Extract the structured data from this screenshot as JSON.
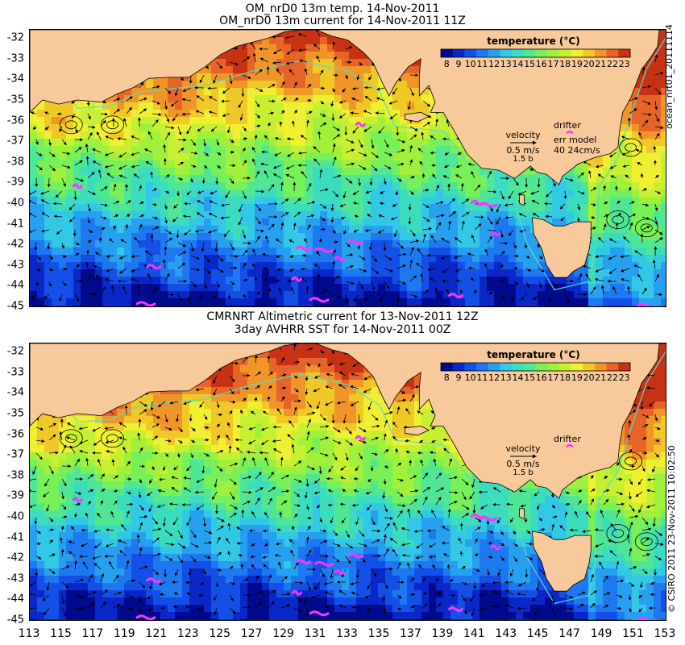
{
  "top_panel": {
    "title_line1": "OM_nrD0 13m temp. 14-Nov-2011",
    "title_line2": "OM_nrD0 13m current for 14-Nov-2011 11Z",
    "side_label": "ocean_nrt01_20111114",
    "velocity_label": "velocity",
    "velocity_value": "0.5 m/s",
    "velocity_sub": "1.5 b",
    "drifter_label": "drifter",
    "err_model_label": "err model",
    "err_model_value": "40 24cm/s"
  },
  "bottom_panel": {
    "title_line1": "CMRNRT Altimetric current for 13-Nov-2011 12Z",
    "title_line2": "3day AVHRR SST for 14-Nov-2011 00Z",
    "side_label": "© CSIRO 2011   23-Nov-2011 10:02:50",
    "velocity_label": "velocity",
    "velocity_value": "0.5 m/s",
    "velocity_sub": "1.5 b",
    "drifter_label": "drifter"
  },
  "legend": {
    "title": "temperature (°C)",
    "ticks": [
      "8",
      "9",
      "10",
      "11",
      "12",
      "13",
      "14",
      "15",
      "16",
      "17",
      "18",
      "19",
      "20",
      "21",
      "22",
      "23"
    ],
    "colors": [
      "#000a8c",
      "#0a28c8",
      "#1450e6",
      "#1e78f0",
      "#28a0f0",
      "#32c8e6",
      "#3cdcbe",
      "#50e696",
      "#78f05a",
      "#a0f03c",
      "#c8f032",
      "#f0f032",
      "#f0c828",
      "#f09628",
      "#e66428",
      "#c83214"
    ]
  },
  "map_axes": {
    "lat_ticks": [
      "-32",
      "-33",
      "-34",
      "-35",
      "-36",
      "-37",
      "-38",
      "-39",
      "-40",
      "-41",
      "-42",
      "-43",
      "-44",
      "-45"
    ],
    "lon_ticks": [
      "113",
      "115",
      "117",
      "119",
      "121",
      "123",
      "125",
      "127",
      "129",
      "131",
      "133",
      "135",
      "137",
      "139",
      "141",
      "143",
      "145",
      "147",
      "149",
      "151",
      "153"
    ],
    "lat_range": [
      -31.6,
      -45.0
    ],
    "lon_range": [
      113,
      153
    ]
  },
  "colors": {
    "land": "#f7c99b",
    "drifter": "#ff33ff",
    "shelf_line": "#55ddcc"
  }
}
